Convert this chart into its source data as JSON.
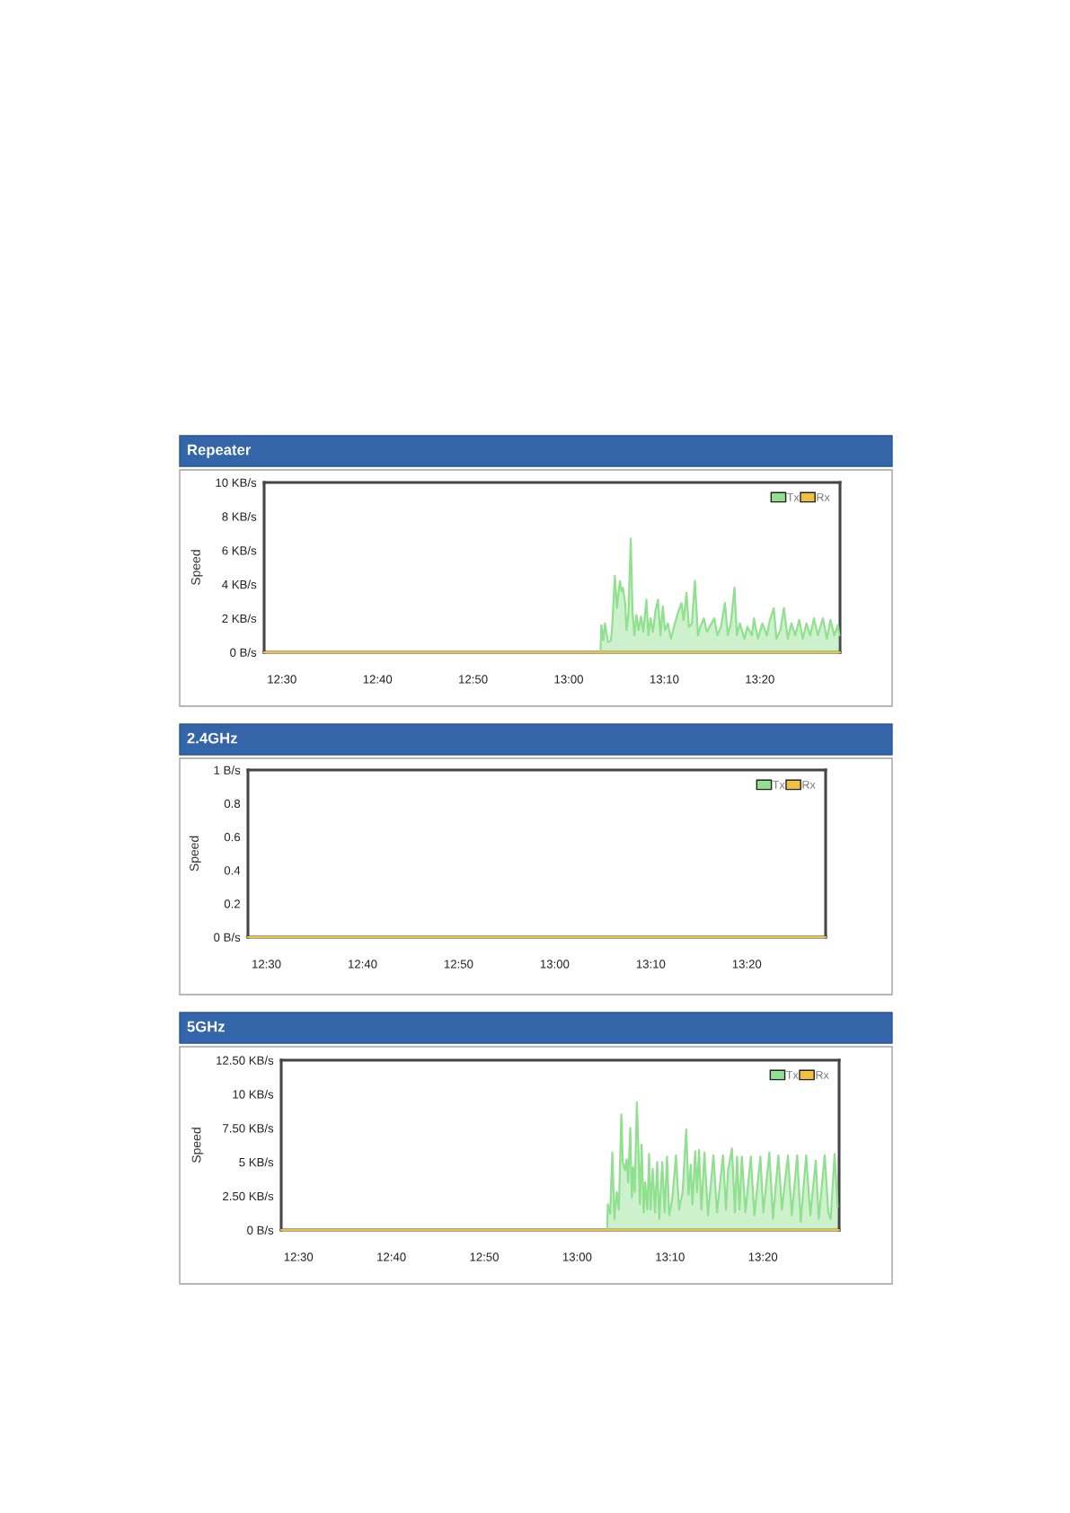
{
  "chart_data": [
    {
      "type": "area",
      "title": "Repeater",
      "ylabel": "Speed",
      "xlim": [
        12.469,
        13.473
      ],
      "ylim": [
        0,
        10
      ],
      "xticks": [
        {
          "value": 12.5,
          "label": "12:30"
        },
        {
          "value": 12.6667,
          "label": "12:40"
        },
        {
          "value": 12.8333,
          "label": "12:50"
        },
        {
          "value": 13.0,
          "label": "13:00"
        },
        {
          "value": 13.1667,
          "label": "13:10"
        },
        {
          "value": 13.3333,
          "label": "13:20"
        }
      ],
      "yticks": [
        {
          "value": 0,
          "label": "0 B/s"
        },
        {
          "value": 2,
          "label": "2 KB/s"
        },
        {
          "value": 4,
          "label": "4 KB/s"
        },
        {
          "value": 6,
          "label": "6 KB/s"
        },
        {
          "value": 8,
          "label": "8 KB/s"
        },
        {
          "value": 10,
          "label": "10 KB/s"
        }
      ],
      "legend": "top right",
      "grid": false,
      "series": [
        {
          "name": "Tx",
          "color": "#90e090",
          "x": [
            12.469,
            13.054,
            13.0554,
            13.057,
            13.0606,
            13.0632,
            13.0685,
            13.0737,
            13.0763,
            13.0805,
            13.0841,
            13.0868,
            13.0894,
            13.092,
            13.0946,
            13.0983,
            13.1009,
            13.104,
            13.1082,
            13.1113,
            13.1145,
            13.1181,
            13.1218,
            13.126,
            13.1301,
            13.1354,
            13.139,
            13.1427,
            13.1469,
            13.151,
            13.1557,
            13.1599,
            13.1641,
            13.1678,
            13.173,
            13.1782,
            13.1834,
            13.1913,
            13.1965,
            13.2002,
            13.2054,
            13.2096,
            13.2148,
            13.22,
            13.2253,
            13.2294,
            13.2357,
            13.2409,
            13.2488,
            13.254,
            13.2592,
            13.2655,
            13.2723,
            13.2775,
            13.2827,
            13.289,
            13.2932,
            13.2984,
            13.3063,
            13.3115,
            13.3193,
            13.323,
            13.3298,
            13.3376,
            13.3455,
            13.3507,
            13.3575,
            13.3622,
            13.369,
            13.3752,
            13.382,
            13.3883,
            13.3951,
            13.4019,
            13.4082,
            13.4144,
            13.4212,
            13.4275,
            13.4343,
            13.4432,
            13.45,
            13.4563,
            13.463,
            13.4693,
            13.4719
          ],
          "values": [
            0,
            0,
            0,
            1.6,
            0.7,
            1.7,
            0.6,
            0.7,
            1.8,
            4.5,
            2.6,
            3.5,
            4.2,
            3.6,
            3.8,
            2.9,
            1.3,
            2.2,
            6.7,
            2.4,
            1.0,
            2.2,
            1.3,
            2.1,
            1.2,
            3.1,
            1.0,
            2.0,
            1.2,
            2.4,
            3.1,
            1.0,
            2.7,
            1.3,
            1.7,
            0.8,
            1.5,
            2.4,
            2.9,
            1.9,
            3.5,
            1.5,
            1.7,
            4.2,
            1.0,
            1.5,
            2.0,
            1.2,
            1.7,
            2.0,
            1.0,
            1.5,
            2.9,
            1.0,
            1.7,
            3.8,
            1.0,
            1.7,
            0.8,
            1.5,
            1.0,
            2.0,
            0.8,
            1.7,
            1.0,
            1.9,
            2.6,
            0.8,
            1.3,
            2.6,
            0.8,
            1.7,
            1.0,
            1.9,
            0.8,
            1.7,
            1.0,
            2.0,
            1.0,
            2.0,
            0.8,
            1.9,
            1.0,
            1.6,
            1.0
          ]
        },
        {
          "name": "Rx",
          "type": "line",
          "color": "#f0c040",
          "x": [
            12.469,
            13.473
          ],
          "values": [
            0,
            0
          ]
        }
      ]
    },
    {
      "type": "area",
      "title": "2.4GHz",
      "ylabel": "Speed",
      "xlim": [
        12.468,
        13.47
      ],
      "ylim": [
        0,
        1
      ],
      "xticks": [
        {
          "value": 12.5,
          "label": "12:30"
        },
        {
          "value": 12.6667,
          "label": "12:40"
        },
        {
          "value": 12.8333,
          "label": "12:50"
        },
        {
          "value": 13.0,
          "label": "13:00"
        },
        {
          "value": 13.1667,
          "label": "13:10"
        },
        {
          "value": 13.3333,
          "label": "13:20"
        }
      ],
      "yticks": [
        {
          "value": 0,
          "label": "0 B/s"
        },
        0.2,
        0.4,
        0.6,
        0.8,
        {
          "value": 1,
          "label": "1 B/s"
        }
      ],
      "legend": "top right",
      "grid": false,
      "series": [
        {
          "name": "Tx",
          "type": "line",
          "color": "#90e090",
          "values": [
            null,
            null
          ]
        },
        {
          "name": "Rx",
          "type": "line",
          "color": "#f0c040",
          "x": [
            12.468,
            13.47
          ],
          "values": [
            0,
            0
          ]
        }
      ]
    },
    {
      "type": "area",
      "title": "5GHz",
      "ylabel": "Speed",
      "xlim": [
        12.469,
        13.47
      ],
      "ylim": [
        0,
        12.5
      ],
      "xticks": [
        {
          "value": 12.5,
          "label": "12:30"
        },
        {
          "value": 12.6667,
          "label": "12:40"
        },
        {
          "value": 12.8333,
          "label": "12:50"
        },
        {
          "value": 13.0,
          "label": "13:00"
        },
        {
          "value": 13.1667,
          "label": "13:10"
        },
        {
          "value": 13.3333,
          "label": "13:20"
        }
      ],
      "yticks": [
        {
          "value": 0,
          "label": "0 B/s"
        },
        {
          "value": 2.5,
          "label": "2.50 KB/s"
        },
        {
          "value": 5,
          "label": "5 KB/s"
        },
        {
          "value": 7.5,
          "label": "7.50 KB/s"
        },
        {
          "value": 10,
          "label": "10 KB/s"
        },
        {
          "value": 12.5,
          "label": "12.50 KB/s"
        }
      ],
      "legend": "top right",
      "grid": false,
      "series": [
        {
          "name": "Tx",
          "color": "#90e090",
          "x": [
            12.469,
            13.0535,
            13.0539,
            13.055,
            13.0593,
            13.0631,
            13.0668,
            13.0711,
            13.0749,
            13.0792,
            13.0819,
            13.0856,
            13.0888,
            13.0915,
            13.0953,
            13.098,
            13.1006,
            13.1033,
            13.1071,
            13.1098,
            13.1125,
            13.1157,
            13.1194,
            13.1221,
            13.1259,
            13.1291,
            13.1318,
            13.1355,
            13.1398,
            13.1436,
            13.1473,
            13.1527,
            13.157,
            13.1613,
            13.1651,
            13.1704,
            13.1774,
            13.1828,
            13.1892,
            13.1957,
            13.1999,
            13.2037,
            13.2069,
            13.2118,
            13.215,
            13.2187,
            13.223,
            13.2284,
            13.2348,
            13.2445,
            13.2509,
            13.2617,
            13.267,
            13.2708,
            13.2778,
            13.2831,
            13.2869,
            13.2912,
            13.2955,
            13.3019,
            13.3116,
            13.318,
            13.3288,
            13.3341,
            13.3449,
            13.3513,
            13.361,
            13.3674,
            13.3782,
            13.3851,
            13.3948,
            13.4012,
            13.4109,
            13.4184,
            13.4281,
            13.4334,
            13.4442,
            13.4506,
            13.4549,
            13.4619,
            13.4673
          ],
          "values": [
            0,
            0,
            0,
            1.9,
            1.2,
            5.7,
            0.8,
            2.8,
            1.5,
            8.5,
            5.0,
            4.4,
            5.2,
            3.5,
            7.5,
            2.4,
            4.6,
            2.8,
            9.4,
            6.1,
            1.9,
            6.3,
            1.3,
            3.5,
            1.5,
            5.6,
            1.5,
            4.5,
            1.3,
            5.0,
            0.8,
            5.0,
            1.3,
            5.4,
            1.1,
            2.2,
            5.5,
            1.5,
            2.8,
            7.4,
            2.6,
            4.8,
            1.9,
            5.8,
            2.8,
            5.9,
            1.5,
            5.7,
            1.1,
            5.5,
            1.3,
            5.5,
            1.5,
            4.4,
            6.0,
            1.3,
            5.4,
            1.5,
            5.4,
            1.3,
            5.4,
            1.1,
            5.4,
            1.3,
            5.7,
            0.8,
            5.5,
            1.5,
            5.5,
            1.1,
            5.5,
            0.6,
            5.5,
            1.1,
            5.1,
            0.8,
            5.5,
            1.3,
            0.8,
            5.6,
            1.7
          ]
        },
        {
          "name": "Rx",
          "type": "line",
          "color": "#f0c040",
          "x": [
            12.469,
            13.47
          ],
          "values": [
            0,
            0
          ]
        }
      ]
    }
  ]
}
